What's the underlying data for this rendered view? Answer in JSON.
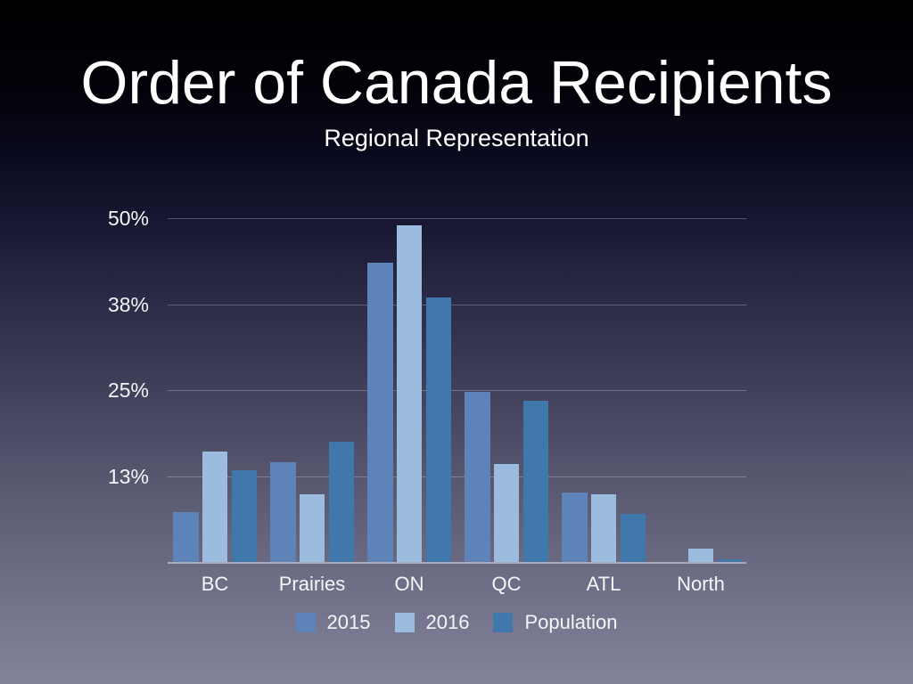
{
  "slide": {
    "title": "Order of Canada Recipients",
    "subtitle": "Regional Representation"
  },
  "chart_data": {
    "type": "bar",
    "title": "Order of Canada Recipients",
    "subtitle": "Regional Representation",
    "categories": [
      "BC",
      "Prairies",
      "ON",
      "QC",
      "ATL",
      "North"
    ],
    "series": [
      {
        "name": "2015",
        "color": "#5d83b8",
        "values": [
          7.3,
          14.5,
          43.5,
          24.7,
          10.1,
          0
        ]
      },
      {
        "name": "2016",
        "color": "#9bbbdf",
        "values": [
          16,
          9.8,
          49,
          14.3,
          9.8,
          1.9
        ]
      },
      {
        "name": "Population",
        "color": "#4078ac",
        "values": [
          13.3,
          17.5,
          38.5,
          23.5,
          7,
          0.4
        ]
      }
    ],
    "xlabel": "",
    "ylabel": "",
    "ylim": [
      0,
      50
    ],
    "yticks": [
      {
        "label": "50%",
        "value": 50
      },
      {
        "label": "38%",
        "value": 37.5
      },
      {
        "label": "25%",
        "value": 25
      },
      {
        "label": "13%",
        "value": 12.5
      }
    ],
    "grid": true,
    "legend_position": "bottom"
  },
  "colors": {
    "background_top": "#000000",
    "background_bottom": "#83839a",
    "text": "#ffffff",
    "gridline": "rgba(205,205,222,0.33)",
    "axis_line": "rgba(214,214,228,0.6)"
  }
}
